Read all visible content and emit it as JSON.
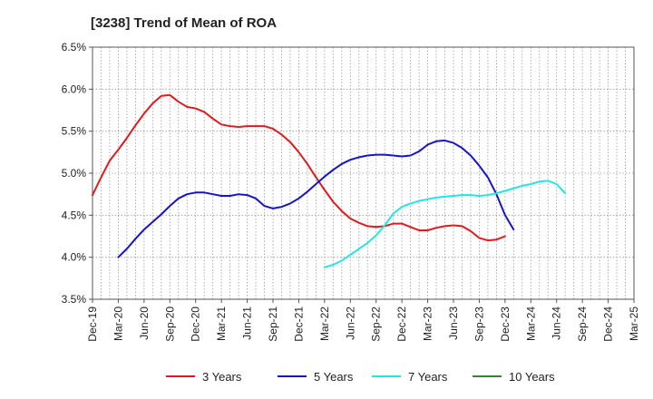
{
  "chart_data": {
    "type": "line",
    "title": "[3238]  Trend of Mean of ROA",
    "xlabel": "",
    "ylabel": "",
    "ylim": [
      3.5,
      6.5
    ],
    "y_ticks": [
      "3.5%",
      "4.0%",
      "4.5%",
      "5.0%",
      "5.5%",
      "6.0%",
      "6.5%"
    ],
    "y_tick_values": [
      3.5,
      4.0,
      4.5,
      5.0,
      5.5,
      6.0,
      6.5
    ],
    "x_ticks": [
      "Dec-19",
      "Mar-20",
      "Jun-20",
      "Sep-20",
      "Dec-20",
      "Mar-21",
      "Jun-21",
      "Sep-21",
      "Dec-21",
      "Mar-22",
      "Jun-22",
      "Sep-22",
      "Dec-22",
      "Mar-23",
      "Jun-23",
      "Sep-23",
      "Dec-23",
      "Mar-24",
      "Jun-24",
      "Sep-24",
      "Dec-24",
      "Mar-25"
    ],
    "grid": true,
    "legend_position": "bottom",
    "series": [
      {
        "name": "3 Years",
        "color": "#e31a1c",
        "x_start_index": 0,
        "values": [
          4.74,
          4.95,
          5.15,
          5.28,
          5.42,
          5.57,
          5.71,
          5.83,
          5.92,
          5.93,
          5.85,
          5.79,
          5.77,
          5.73,
          5.65,
          5.58,
          5.56,
          5.55,
          5.56,
          5.56,
          5.56,
          5.53,
          5.46,
          5.37,
          5.25,
          5.11,
          4.95,
          4.8,
          4.66,
          4.55,
          4.46,
          4.41,
          4.37,
          4.36,
          4.37,
          4.4,
          4.4,
          4.36,
          4.32,
          4.32,
          4.35,
          4.37,
          4.38,
          4.37,
          4.31,
          4.23,
          4.2,
          4.21,
          4.25
        ]
      },
      {
        "name": "5 Years",
        "color": "#1515c8",
        "x_start_index": 3,
        "values": [
          4.0,
          4.1,
          4.22,
          4.33,
          4.42,
          4.51,
          4.61,
          4.7,
          4.75,
          4.77,
          4.77,
          4.75,
          4.73,
          4.73,
          4.75,
          4.74,
          4.7,
          4.61,
          4.58,
          4.6,
          4.64,
          4.7,
          4.78,
          4.87,
          4.96,
          5.04,
          5.11,
          5.16,
          5.19,
          5.21,
          5.22,
          5.22,
          5.21,
          5.2,
          5.21,
          5.26,
          5.34,
          5.38,
          5.39,
          5.36,
          5.3,
          5.21,
          5.09,
          4.95,
          4.75,
          4.5,
          4.33
        ]
      },
      {
        "name": "7 Years",
        "color": "#22e5e5",
        "x_start_index": 27,
        "values": [
          3.88,
          3.91,
          3.96,
          4.03,
          4.1,
          4.17,
          4.26,
          4.38,
          4.52,
          4.6,
          4.64,
          4.67,
          4.69,
          4.71,
          4.72,
          4.73,
          4.74,
          4.74,
          4.73,
          4.74,
          4.76,
          4.79,
          4.82,
          4.85,
          4.87,
          4.9,
          4.91,
          4.87,
          4.76
        ]
      },
      {
        "name": "10 Years",
        "color": "#2a8a2a",
        "x_start_index": 0,
        "values": []
      }
    ]
  }
}
